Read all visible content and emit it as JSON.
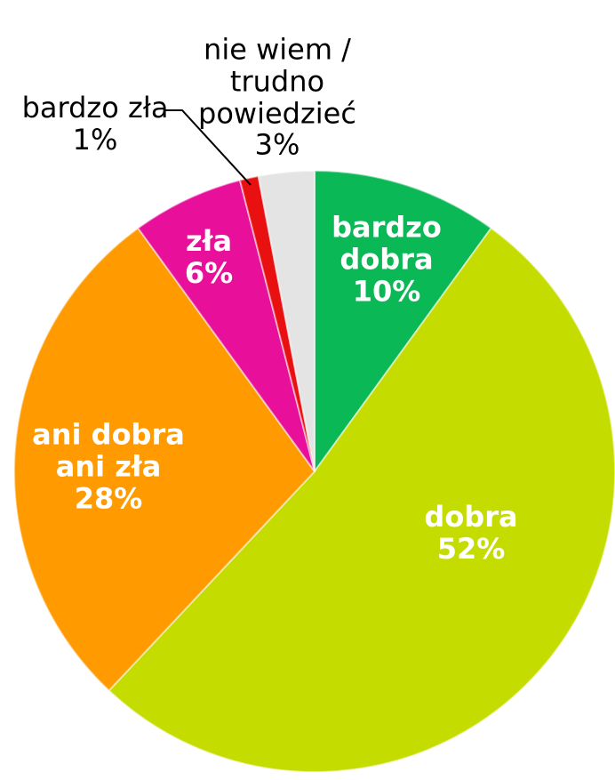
{
  "chart_data": {
    "type": "pie",
    "categories": [
      "bardzo dobra",
      "dobra",
      "ani dobra ani zła",
      "zła",
      "bardzo zła",
      "nie wiem / trudno powiedzieć"
    ],
    "values": [
      10,
      52,
      28,
      6,
      1,
      3
    ],
    "value_labels": [
      "10%",
      "52%",
      "28%",
      "6%",
      "1%",
      "3%"
    ],
    "colors": [
      "#0bb856",
      "#c5dc00",
      "#ff9a00",
      "#e8109a",
      "#e81010",
      "#e4e4e4"
    ]
  }
}
